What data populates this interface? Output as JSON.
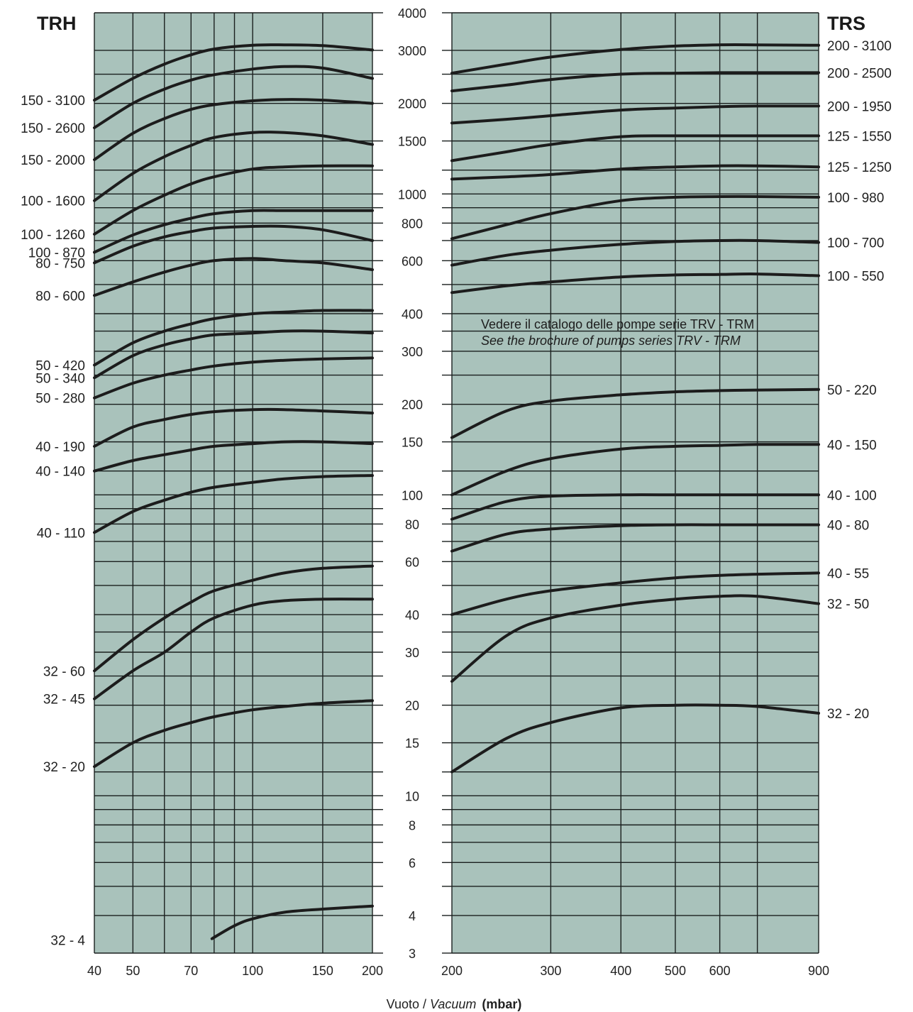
{
  "xlabel": {
    "it": "Vuoto /",
    "en": "Vacuum",
    "unit": "(mbar)"
  },
  "note": {
    "line1": "Vedere il catalogo delle pompe serie TRV - TRM",
    "line2": "See the brochure of pumps series TRV - TRM"
  },
  "colors": {
    "panel": "#a9c2bb",
    "curve": "#1c1c1c",
    "grid": "#1a1f1e"
  },
  "chart_data": [
    {
      "type": "line",
      "title": "TRH",
      "xscale": "log",
      "yscale": "log",
      "xlim": [
        40,
        200
      ],
      "ylim": [
        3,
        4000
      ],
      "x_ticks": [
        40,
        50,
        70,
        100,
        150,
        200
      ],
      "y_ticks": [
        3,
        4,
        6,
        8,
        10,
        15,
        20,
        30,
        40,
        60,
        80,
        100,
        150,
        200,
        300,
        400,
        600,
        800,
        1000,
        1500,
        2000,
        3000,
        4000
      ],
      "grid": true,
      "series": [
        {
          "name": "150 - 3100",
          "x": [
            40,
            50,
            60,
            70,
            80,
            100,
            120,
            150,
            200
          ],
          "y": [
            2050,
            2420,
            2700,
            2900,
            3030,
            3120,
            3130,
            3110,
            3010
          ]
        },
        {
          "name": "150 - 2600",
          "x": [
            40,
            50,
            60,
            70,
            80,
            100,
            120,
            150,
            200
          ],
          "y": [
            1660,
            2000,
            2230,
            2390,
            2490,
            2600,
            2650,
            2620,
            2420
          ]
        },
        {
          "name": "150 - 2000",
          "x": [
            40,
            50,
            60,
            70,
            80,
            100,
            120,
            150,
            200
          ],
          "y": [
            1300,
            1590,
            1780,
            1910,
            1980,
            2040,
            2060,
            2050,
            2000
          ]
        },
        {
          "name": "100 - 1600",
          "x": [
            40,
            50,
            60,
            70,
            80,
            100,
            120,
            150,
            200
          ],
          "y": [
            950,
            1170,
            1330,
            1450,
            1540,
            1600,
            1600,
            1560,
            1460
          ]
        },
        {
          "name": "100 - 1260",
          "x": [
            40,
            50,
            60,
            70,
            80,
            100,
            120,
            150,
            200
          ],
          "y": [
            735,
            880,
            990,
            1080,
            1140,
            1210,
            1230,
            1240,
            1240
          ]
        },
        {
          "name": "100 - 870",
          "x": [
            40,
            50,
            60,
            70,
            80,
            100,
            120,
            150,
            200
          ],
          "y": [
            640,
            730,
            790,
            830,
            860,
            880,
            880,
            880,
            880
          ]
        },
        {
          "name": "80 - 750",
          "x": [
            40,
            50,
            60,
            70,
            80,
            100,
            120,
            150,
            200
          ],
          "y": [
            590,
            670,
            720,
            750,
            770,
            780,
            780,
            760,
            700
          ]
        },
        {
          "name": "80 - 600",
          "x": [
            40,
            50,
            60,
            70,
            80,
            100,
            120,
            150,
            200
          ],
          "y": [
            460,
            510,
            550,
            580,
            600,
            610,
            600,
            590,
            560
          ]
        },
        {
          "name": "50 - 420",
          "x": [
            40,
            50,
            60,
            70,
            80,
            100,
            120,
            150,
            200
          ],
          "y": [
            270,
            320,
            350,
            370,
            385,
            400,
            405,
            410,
            410
          ]
        },
        {
          "name": "50 - 340",
          "x": [
            40,
            50,
            60,
            70,
            80,
            100,
            120,
            150,
            200
          ],
          "y": [
            245,
            290,
            315,
            330,
            340,
            345,
            350,
            350,
            345
          ]
        },
        {
          "name": "50 - 280",
          "x": [
            40,
            50,
            60,
            70,
            80,
            100,
            120,
            150,
            200
          ],
          "y": [
            210,
            235,
            250,
            260,
            268,
            276,
            280,
            283,
            285
          ]
        },
        {
          "name": "40 - 190",
          "x": [
            40,
            50,
            60,
            70,
            80,
            100,
            120,
            150,
            200
          ],
          "y": [
            145,
            168,
            178,
            185,
            189,
            192,
            192,
            190,
            187
          ]
        },
        {
          "name": "40 - 140",
          "x": [
            40,
            50,
            60,
            70,
            80,
            100,
            120,
            150,
            200
          ],
          "y": [
            120,
            130,
            136,
            141,
            145,
            148,
            150,
            150,
            148
          ]
        },
        {
          "name": "40 - 110",
          "x": [
            40,
            50,
            60,
            70,
            80,
            100,
            120,
            150,
            200
          ],
          "y": [
            75,
            88,
            96,
            102,
            106,
            110,
            113,
            115,
            116
          ]
        },
        {
          "name": "32 - 60",
          "x": [
            40,
            50,
            60,
            70,
            80,
            100,
            120,
            150,
            200
          ],
          "y": [
            26,
            33,
            39,
            44,
            48,
            52,
            55,
            57,
            58
          ]
        },
        {
          "name": "32 - 45",
          "x": [
            40,
            50,
            60,
            70,
            80,
            100,
            120,
            150,
            200
          ],
          "y": [
            21,
            26,
            30,
            35,
            39,
            43,
            44.5,
            45,
            45
          ]
        },
        {
          "name": "32 - 20",
          "x": [
            40,
            50,
            60,
            70,
            80,
            100,
            120,
            150,
            200
          ],
          "y": [
            12.5,
            15,
            16.5,
            17.5,
            18.3,
            19.3,
            19.8,
            20.3,
            20.7
          ]
        },
        {
          "name": "32 - 4",
          "x": [
            79,
            90,
            100,
            120,
            150,
            200
          ],
          "y": [
            3.35,
            3.7,
            3.9,
            4.1,
            4.2,
            4.3
          ]
        }
      ]
    },
    {
      "type": "line",
      "title": "TRS",
      "xscale": "log",
      "yscale": "log",
      "xlim": [
        200,
        900
      ],
      "ylim": [
        3,
        4000
      ],
      "x_ticks": [
        200,
        300,
        400,
        500,
        600,
        900
      ],
      "y_ticks": [
        3,
        4,
        6,
        8,
        10,
        15,
        20,
        30,
        40,
        60,
        80,
        100,
        150,
        200,
        300,
        400,
        600,
        800,
        1000,
        1500,
        2000,
        3000,
        4000
      ],
      "grid": true,
      "series": [
        {
          "name": "200 - 3100",
          "x": [
            200,
            250,
            300,
            400,
            500,
            600,
            700,
            900
          ],
          "y": [
            2520,
            2700,
            2850,
            3020,
            3100,
            3130,
            3130,
            3120
          ]
        },
        {
          "name": "200 - 2500",
          "x": [
            200,
            250,
            300,
            400,
            500,
            600,
            700,
            900
          ],
          "y": [
            2200,
            2300,
            2400,
            2500,
            2520,
            2530,
            2530,
            2530
          ]
        },
        {
          "name": "200 - 1950",
          "x": [
            200,
            250,
            300,
            400,
            500,
            600,
            700,
            900
          ],
          "y": [
            1720,
            1770,
            1820,
            1900,
            1930,
            1950,
            1960,
            1960
          ]
        },
        {
          "name": "125 - 1550",
          "x": [
            200,
            250,
            300,
            400,
            500,
            600,
            700,
            900
          ],
          "y": [
            1290,
            1380,
            1460,
            1550,
            1560,
            1560,
            1560,
            1560
          ]
        },
        {
          "name": "125 - 1250",
          "x": [
            200,
            250,
            300,
            400,
            500,
            600,
            700,
            900
          ],
          "y": [
            1120,
            1140,
            1160,
            1210,
            1230,
            1240,
            1240,
            1230
          ]
        },
        {
          "name": "100 - 980",
          "x": [
            200,
            250,
            300,
            400,
            500,
            600,
            700,
            900
          ],
          "y": [
            710,
            790,
            860,
            950,
            975,
            980,
            980,
            975
          ]
        },
        {
          "name": "100 - 700",
          "x": [
            200,
            250,
            300,
            400,
            500,
            600,
            700,
            900
          ],
          "y": [
            580,
            625,
            650,
            680,
            695,
            700,
            700,
            690
          ]
        },
        {
          "name": "100 - 550",
          "x": [
            200,
            250,
            300,
            400,
            500,
            600,
            700,
            900
          ],
          "y": [
            470,
            495,
            510,
            530,
            538,
            540,
            542,
            535
          ]
        },
        {
          "name": "50 - 220",
          "x": [
            200,
            250,
            300,
            400,
            500,
            600,
            700,
            900
          ],
          "y": [
            155,
            190,
            205,
            215,
            220,
            222,
            223,
            224
          ]
        },
        {
          "name": "40 - 150",
          "x": [
            200,
            250,
            300,
            400,
            500,
            600,
            700,
            900
          ],
          "y": [
            100,
            120,
            132,
            142,
            145,
            146,
            147,
            147
          ]
        },
        {
          "name": "40 - 100",
          "x": [
            200,
            250,
            300,
            400,
            500,
            600,
            700,
            900
          ],
          "y": [
            83,
            95,
            99,
            100,
            100,
            100,
            100,
            100
          ]
        },
        {
          "name": "40 - 80",
          "x": [
            200,
            250,
            300,
            400,
            500,
            600,
            700,
            900
          ],
          "y": [
            65,
            74,
            77,
            79,
            79.5,
            79.5,
            79.5,
            79.5
          ]
        },
        {
          "name": "40 - 55",
          "x": [
            200,
            250,
            300,
            400,
            500,
            600,
            700,
            900
          ],
          "y": [
            40,
            45,
            48,
            51,
            53,
            54,
            54.5,
            55
          ]
        },
        {
          "name": "32 - 50",
          "x": [
            200,
            250,
            300,
            400,
            500,
            600,
            700,
            900
          ],
          "y": [
            24,
            34,
            39,
            43,
            45,
            46,
            46,
            43.5
          ]
        },
        {
          "name": "32 - 20",
          "x": [
            200,
            250,
            300,
            400,
            500,
            600,
            700,
            900
          ],
          "y": [
            12,
            15.5,
            17.5,
            19.6,
            20,
            20,
            19.8,
            18.8
          ]
        }
      ]
    }
  ]
}
